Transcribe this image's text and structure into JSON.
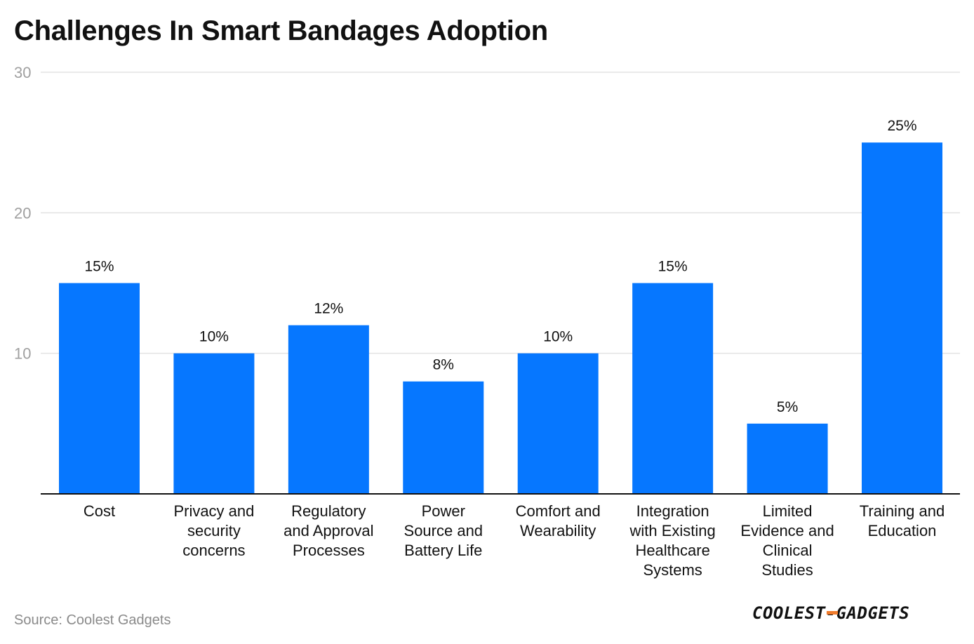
{
  "title": "Challenges In Smart Bandages Adoption",
  "source": "Source: Coolest Gadgets",
  "logo": {
    "text": "COOLEST-GADGETS",
    "accent": "#f07b2b"
  },
  "colors": {
    "bar": "#0677ff",
    "grid": "#e3e3e3",
    "axis": "#111111"
  },
  "chart_data": {
    "type": "bar",
    "title": "Challenges In Smart Bandages Adoption",
    "xlabel": "",
    "ylabel": "",
    "ylim": [
      0,
      30
    ],
    "yticks": [
      10,
      20,
      30
    ],
    "grid": true,
    "categories": [
      [
        "Cost"
      ],
      [
        "Privacy and",
        "security",
        "concerns"
      ],
      [
        "Regulatory",
        "and Approval",
        "Processes"
      ],
      [
        "Power",
        "Source and",
        "Battery Life"
      ],
      [
        "Comfort and",
        "Wearability"
      ],
      [
        "Integration",
        "with Existing",
        "Healthcare",
        "Systems"
      ],
      [
        "Limited",
        "Evidence and",
        "Clinical",
        "Studies"
      ],
      [
        "Training and",
        "Education"
      ]
    ],
    "values": [
      15,
      10,
      12,
      8,
      10,
      15,
      5,
      25
    ],
    "data_labels": [
      "15%",
      "10%",
      "12%",
      "8%",
      "10%",
      "15%",
      "5%",
      "25%"
    ]
  }
}
